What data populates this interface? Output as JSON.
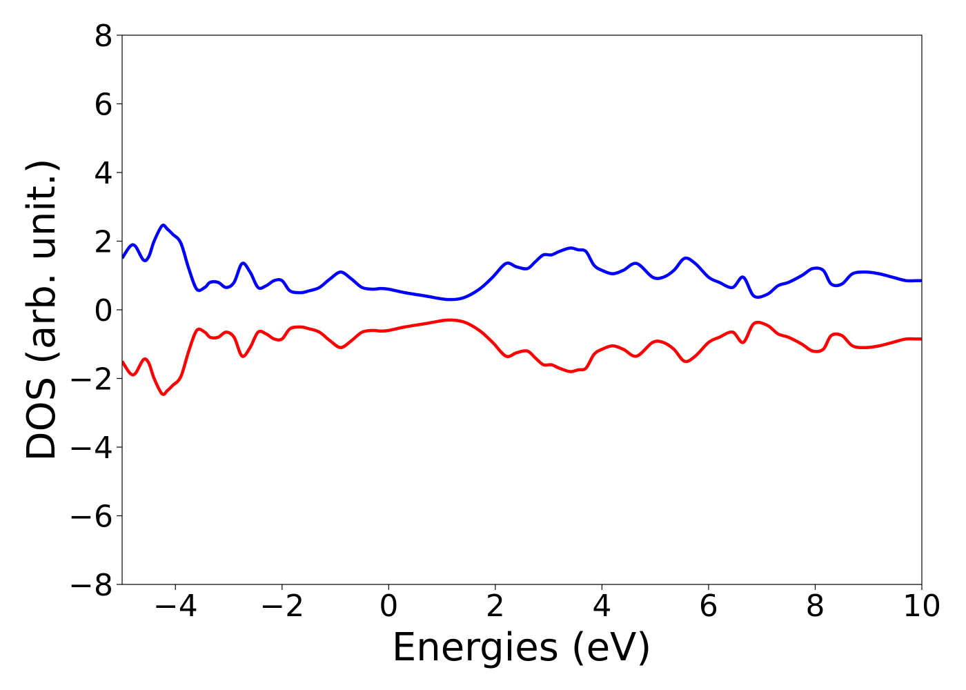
{
  "chart_data": {
    "type": "line",
    "title": "",
    "xlabel": "Energies (eV)",
    "ylabel": "DOS (arb. unit.)",
    "xlim": [
      -5,
      10
    ],
    "ylim": [
      -8,
      8
    ],
    "x_ticks": [
      -4,
      -2,
      0,
      2,
      4,
      6,
      8,
      10
    ],
    "y_ticks": [
      -8,
      -6,
      -4,
      -2,
      0,
      2,
      4,
      6,
      8
    ],
    "x_tick_labels": [
      "−4",
      "−2",
      "0",
      "2",
      "4",
      "6",
      "8",
      "10"
    ],
    "y_tick_labels": [
      "−8",
      "−6",
      "−4",
      "−2",
      "0",
      "2",
      "4",
      "6",
      "8"
    ],
    "grid": false,
    "legend": "none",
    "x": [
      -5.0,
      -4.85,
      -4.75,
      -4.6,
      -4.5,
      -4.4,
      -4.25,
      -4.15,
      -4.05,
      -3.9,
      -3.75,
      -3.6,
      -3.45,
      -3.35,
      -3.2,
      -3.05,
      -2.9,
      -2.75,
      -2.6,
      -2.45,
      -2.3,
      -2.15,
      -2.0,
      -1.85,
      -1.65,
      -1.5,
      -1.3,
      -1.1,
      -0.9,
      -0.7,
      -0.5,
      -0.3,
      -0.15,
      0.0,
      0.3,
      0.7,
      1.1,
      1.4,
      1.7,
      1.95,
      2.2,
      2.4,
      2.6,
      2.75,
      2.9,
      3.05,
      3.2,
      3.4,
      3.55,
      3.7,
      3.85,
      4.0,
      4.2,
      4.4,
      4.65,
      4.95,
      5.15,
      5.35,
      5.55,
      5.75,
      6.0,
      6.2,
      6.45,
      6.65,
      6.85,
      7.1,
      7.3,
      7.5,
      7.75,
      7.95,
      8.15,
      8.3,
      8.5,
      8.7,
      8.95,
      9.2,
      9.45,
      9.7,
      9.9,
      10.0
    ],
    "series": [
      {
        "color": "#0000ff",
        "values": [
          1.5,
          1.85,
          1.85,
          1.45,
          1.55,
          2.0,
          2.45,
          2.35,
          2.2,
          1.95,
          1.2,
          0.6,
          0.65,
          0.8,
          0.8,
          0.65,
          0.8,
          1.35,
          1.1,
          0.65,
          0.7,
          0.85,
          0.85,
          0.55,
          0.5,
          0.55,
          0.65,
          0.9,
          1.1,
          0.9,
          0.65,
          0.6,
          0.62,
          0.6,
          0.5,
          0.4,
          0.3,
          0.35,
          0.6,
          0.95,
          1.35,
          1.25,
          1.2,
          1.4,
          1.6,
          1.6,
          1.7,
          1.8,
          1.75,
          1.7,
          1.3,
          1.15,
          1.05,
          1.15,
          1.35,
          0.95,
          0.95,
          1.15,
          1.5,
          1.35,
          0.95,
          0.8,
          0.65,
          0.95,
          0.4,
          0.45,
          0.7,
          0.8,
          1.0,
          1.2,
          1.15,
          0.75,
          0.75,
          1.05,
          1.1,
          1.05,
          0.95,
          0.85,
          0.85,
          0.85
        ]
      },
      {
        "color": "#ff0000",
        "values": [
          -1.5,
          -1.85,
          -1.85,
          -1.45,
          -1.55,
          -2.0,
          -2.45,
          -2.35,
          -2.2,
          -1.95,
          -1.2,
          -0.6,
          -0.65,
          -0.8,
          -0.8,
          -0.65,
          -0.8,
          -1.35,
          -1.1,
          -0.65,
          -0.7,
          -0.85,
          -0.85,
          -0.55,
          -0.5,
          -0.55,
          -0.65,
          -0.9,
          -1.1,
          -0.9,
          -0.65,
          -0.6,
          -0.62,
          -0.6,
          -0.5,
          -0.4,
          -0.3,
          -0.35,
          -0.6,
          -0.95,
          -1.35,
          -1.25,
          -1.2,
          -1.4,
          -1.6,
          -1.6,
          -1.7,
          -1.8,
          -1.75,
          -1.7,
          -1.3,
          -1.15,
          -1.05,
          -1.15,
          -1.35,
          -0.95,
          -0.95,
          -1.15,
          -1.5,
          -1.35,
          -0.95,
          -0.8,
          -0.65,
          -0.95,
          -0.4,
          -0.45,
          -0.7,
          -0.8,
          -1.0,
          -1.2,
          -1.15,
          -0.75,
          -0.75,
          -1.05,
          -1.1,
          -1.05,
          -0.95,
          -0.85,
          -0.85,
          -0.85
        ]
      }
    ]
  }
}
